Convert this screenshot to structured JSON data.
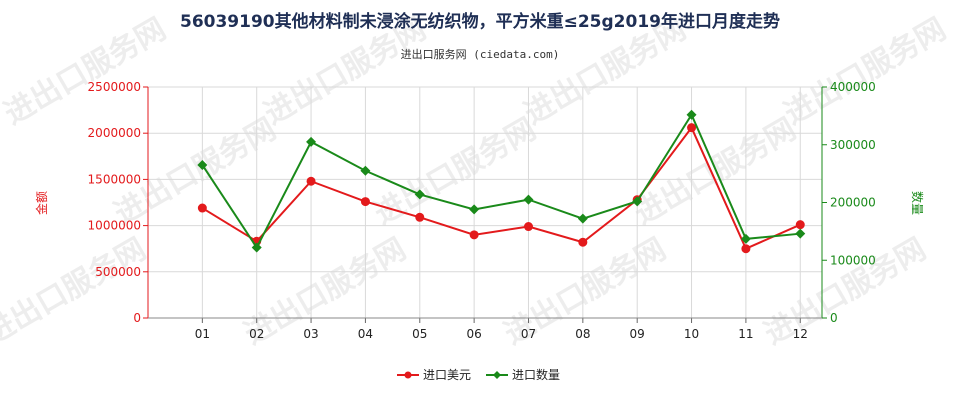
{
  "chart_data": {
    "type": "line",
    "title": "56039190其他材料制未浸涂无纺织物，平方米重≤25g2019年进口月度走势",
    "subtitle": "进出口服务网 (ciedata.com)",
    "categories": [
      "01",
      "02",
      "03",
      "04",
      "05",
      "06",
      "07",
      "08",
      "09",
      "10",
      "11",
      "12"
    ],
    "y_left": {
      "label": "金额",
      "ylim": [
        0,
        2500000
      ],
      "ticks": [
        "0",
        "500000",
        "1000000",
        "1500000",
        "2000000",
        "2500000"
      ],
      "color": "#e31a1c"
    },
    "y_right": {
      "label": "数量",
      "ylim": [
        0,
        400000
      ],
      "ticks": [
        "0",
        "100000",
        "200000",
        "300000",
        "400000"
      ],
      "color": "#1a8a1a"
    },
    "series": [
      {
        "name": "进口美元",
        "axis": "left",
        "color": "#e31a1c",
        "marker": "circle",
        "values": [
          1190000,
          830000,
          1480000,
          1260000,
          1090000,
          900000,
          990000,
          820000,
          1280000,
          2060000,
          750000,
          1010000
        ]
      },
      {
        "name": "进口数量",
        "axis": "right",
        "color": "#1a8a1a",
        "marker": "diamond",
        "values": [
          265000,
          122000,
          305000,
          255000,
          214000,
          188000,
          205000,
          172000,
          202000,
          352000,
          137000,
          146000
        ]
      }
    ],
    "grid": true,
    "legend": "bottom-center"
  },
  "watermark_text": "进出口服务网"
}
